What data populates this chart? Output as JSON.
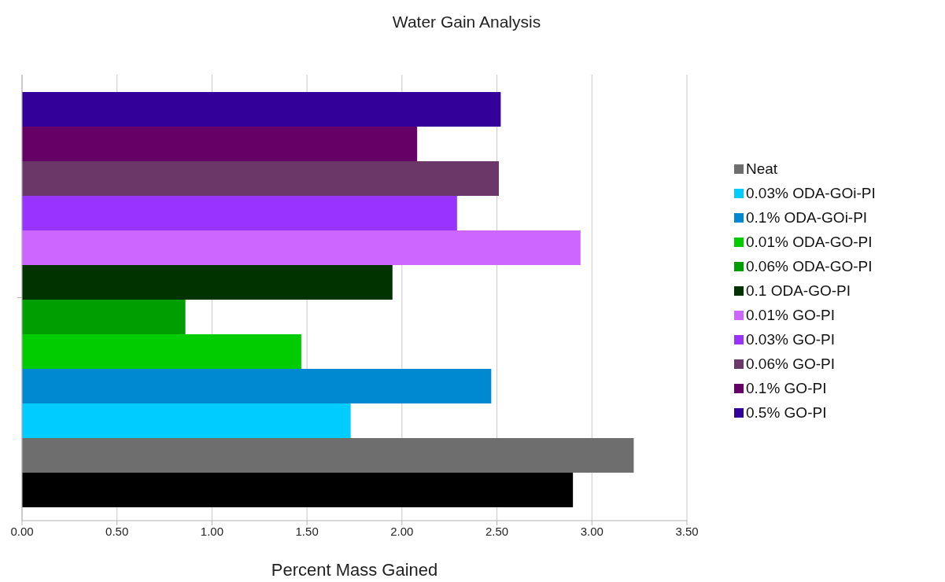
{
  "chart_data": {
    "type": "bar",
    "orientation": "horizontal",
    "title": "Water Gain Analysis",
    "xlabel": "Percent Mass Gained",
    "categories": [
      null
    ],
    "series": [
      {
        "color": "#000000",
        "values": [
          2.9
        ]
      },
      {
        "name": "Neat",
        "color": "#6e6e6e",
        "values": [
          3.22
        ]
      },
      {
        "name": "0.03% ODA-GOi-PI",
        "color": "#00ccff",
        "values": [
          1.73
        ]
      },
      {
        "name": "0.1% ODA-GOi-PI",
        "color": "#0088d0",
        "values": [
          2.47
        ]
      },
      {
        "name": "0.01% ODA-GO-PI",
        "color": "#00cc00",
        "values": [
          1.47
        ]
      },
      {
        "name": "0.06% ODA-GO-PI",
        "color": "#009e00",
        "values": [
          0.86
        ]
      },
      {
        "name": "0.1 ODA-GO-PI",
        "color": "#003300",
        "values": [
          1.95
        ]
      },
      {
        "name": "0.01% GO-PI",
        "color": "#cc66ff",
        "values": [
          2.94
        ]
      },
      {
        "name": "0.03% GO-PI",
        "color": "#9933ff",
        "values": [
          2.29
        ]
      },
      {
        "name": "0.06% GO-PI",
        "color": "#6b3768",
        "values": [
          2.51
        ]
      },
      {
        "name": "0.1% GO-PI",
        "color": "#660066",
        "values": [
          2.08
        ]
      },
      {
        "name": "0.5% GO-PI",
        "color": "#330099",
        "values": [
          2.52
        ]
      }
    ],
    "xlim": [
      0,
      3.5
    ],
    "xticks": [
      {
        "value": 0,
        "label": "0.00"
      },
      {
        "value": 0.5,
        "label": "0.50"
      },
      {
        "value": 1,
        "label": "1.00"
      },
      {
        "value": 1.5,
        "label": "1.50"
      },
      {
        "value": 2,
        "label": "2.00"
      },
      {
        "value": 2.5,
        "label": "2.50"
      },
      {
        "value": 3,
        "label": "3.00"
      },
      {
        "value": 3.5,
        "label": "3.50"
      }
    ],
    "grid": "x",
    "legend": "right"
  }
}
